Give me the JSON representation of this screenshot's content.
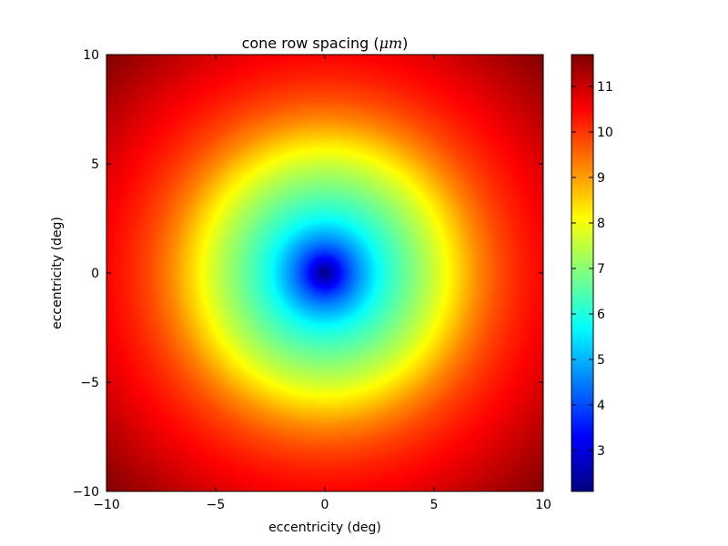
{
  "chart_data": {
    "type": "heatmap",
    "title_prefix": "cone row spacing (",
    "title_unit": "μm",
    "title_suffix": ")",
    "xlabel": "eccentricity (deg)",
    "ylabel": "eccentricity (deg)",
    "xlim": [
      -10,
      10
    ],
    "ylim": [
      -10,
      10
    ],
    "x_ticks": [
      -10,
      -5,
      0,
      5,
      10
    ],
    "y_ticks": [
      -10,
      -5,
      0,
      5,
      10
    ],
    "x_tick_labels": [
      "−10",
      "−5",
      "0",
      "5",
      "10"
    ],
    "y_tick_labels": [
      "−10",
      "−5",
      "0",
      "5",
      "10"
    ],
    "colorbar": {
      "range": [
        2.1,
        11.7
      ],
      "ticks": [
        3,
        4,
        5,
        6,
        7,
        8,
        9,
        10,
        11
      ],
      "tick_labels": [
        "3",
        "4",
        "5",
        "6",
        "7",
        "8",
        "9",
        "10",
        "11"
      ],
      "colormap": "jet"
    },
    "radial_profile": {
      "eccentricity_deg": [
        0,
        0.5,
        1,
        1.5,
        2,
        2.5,
        3,
        4,
        5,
        6,
        7,
        8,
        9,
        10,
        12,
        14.14
      ],
      "value_um": [
        2.1,
        3.0,
        3.9,
        4.6,
        5.2,
        5.8,
        6.2,
        6.9,
        7.6,
        8.4,
        9.2,
        9.8,
        10.2,
        10.5,
        11.1,
        11.7
      ]
    },
    "grid": false
  },
  "colors": {
    "axes_edge": "#000000",
    "background": "#ffffff"
  }
}
